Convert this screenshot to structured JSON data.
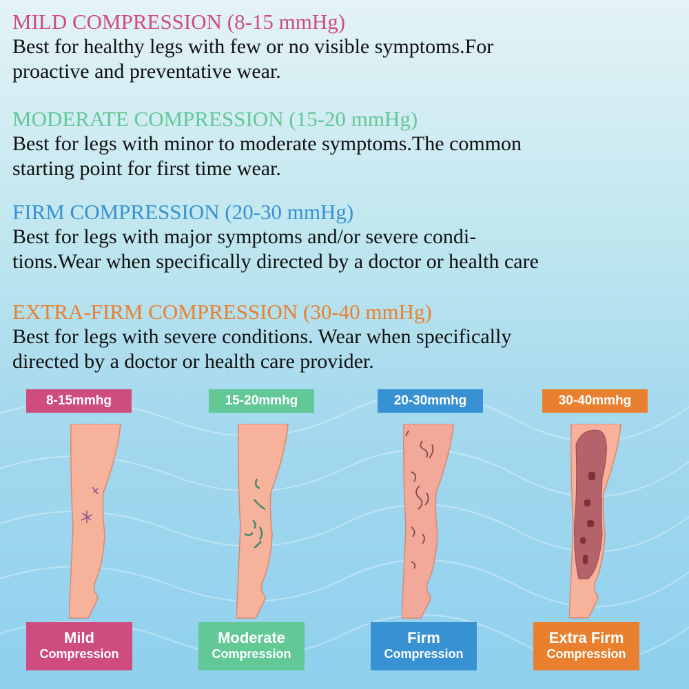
{
  "colors": {
    "mild": "#cf4c7e",
    "moderate": "#62c896",
    "firm": "#3891d3",
    "extra_firm": "#e8802f",
    "skin": "#f7b29b",
    "skin_outline": "#d9876f"
  },
  "sections": [
    {
      "heading": "MILD COMPRESSION (8-15 mmHg)",
      "lines": [
        "Best for healthy legs with few or no visible symptoms.For",
        "proactive and preventative wear."
      ]
    },
    {
      "heading": "MODERATE COMPRESSION (15-20 mmHg)",
      "lines": [
        "Best for legs with minor to moderate symptoms.The common",
        "starting point for first time wear."
      ]
    },
    {
      "heading": "FIRM COMPRESSION (20-30 mmHg)",
      "lines": [
        "Best for legs with major symptoms and/or severe condi-",
        "tions.Wear when specifically directed by a doctor or health care"
      ]
    },
    {
      "heading": "EXTRA-FIRM COMPRESSION (30-40 mmHg)",
      "lines": [
        "Best for legs with severe conditions. Wear when specifically",
        "directed by a doctor or health care provider."
      ]
    }
  ],
  "levels": [
    {
      "tag": "8-15mmhg",
      "title": "Mild",
      "subtitle": "Compression",
      "icon": "leg-spider-veins-icon"
    },
    {
      "tag": "15-20mmhg",
      "title": "Moderate",
      "subtitle": "Compression",
      "icon": "leg-varicose-veins-icon"
    },
    {
      "tag": "20-30mmhg",
      "title": "Firm",
      "subtitle": "Compression",
      "icon": "leg-severe-varicose-veins-icon"
    },
    {
      "tag": "30-40mmhg",
      "title": "Extra Firm",
      "subtitle": "Compression",
      "icon": "leg-swollen-ulcer-icon"
    }
  ]
}
